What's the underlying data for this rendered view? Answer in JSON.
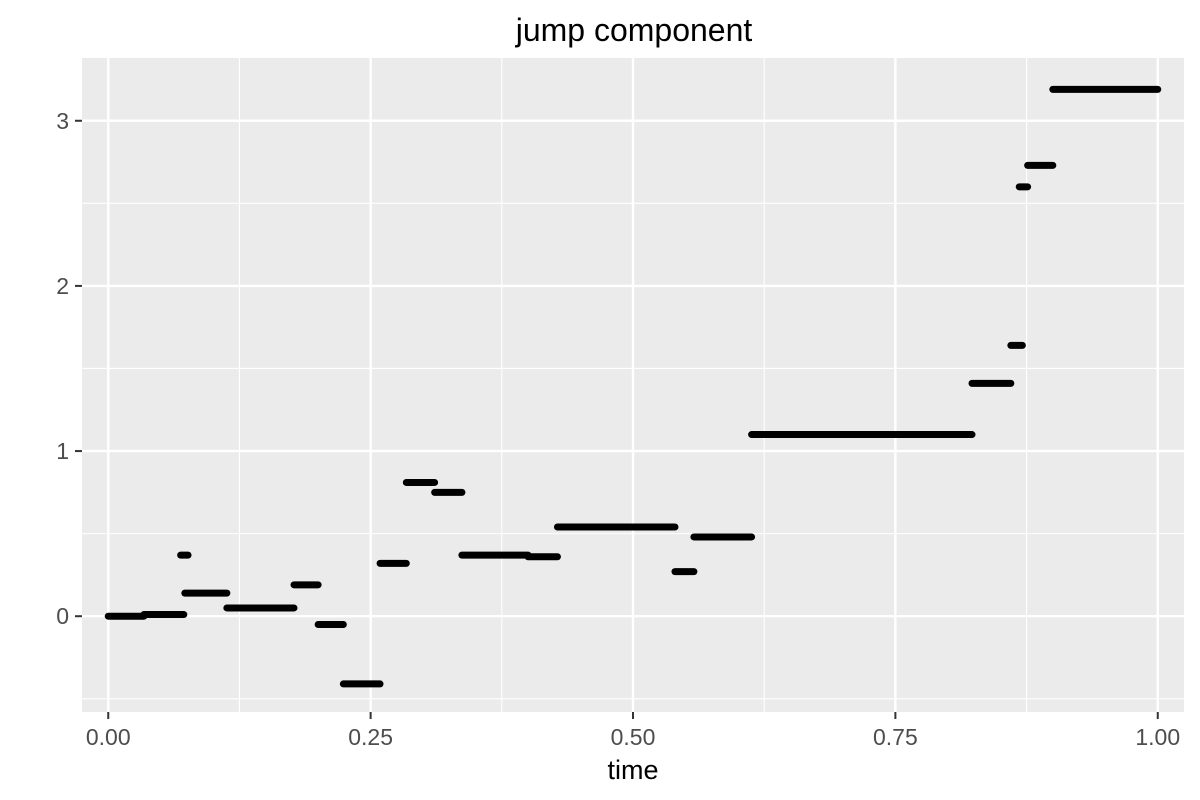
{
  "chart_data": {
    "type": "line",
    "title": "jump component",
    "xlabel": "time",
    "ylabel": "",
    "xlim": [
      -0.025,
      1.025
    ],
    "ylim": [
      -0.58,
      3.38
    ],
    "x_ticks": [
      0.0,
      0.25,
      0.5,
      0.75,
      1.0
    ],
    "x_tick_labels": [
      "0.00",
      "0.25",
      "0.50",
      "0.75",
      "1.00"
    ],
    "y_ticks": [
      0,
      1,
      2,
      3
    ],
    "y_tick_labels": [
      "0",
      "1",
      "2",
      "3"
    ],
    "grid": true,
    "legend": "none",
    "colors": {
      "panel": "#ebebeb",
      "grid": "#ffffff",
      "series": "#000000",
      "tick_text": "#4d4d4d",
      "tick_mark": "#333333"
    },
    "series": [
      {
        "segments": [
          {
            "x0": 0.0,
            "x1": 0.034,
            "y": 0.0
          },
          {
            "x0": 0.034,
            "x1": 0.072,
            "y": 0.01
          },
          {
            "x0": 0.069,
            "x1": 0.076,
            "y": 0.37
          },
          {
            "x0": 0.073,
            "x1": 0.113,
            "y": 0.14
          },
          {
            "x0": 0.113,
            "x1": 0.177,
            "y": 0.05
          },
          {
            "x0": 0.177,
            "x1": 0.2,
            "y": 0.19
          },
          {
            "x0": 0.2,
            "x1": 0.224,
            "y": -0.05
          },
          {
            "x0": 0.224,
            "x1": 0.259,
            "y": -0.41
          },
          {
            "x0": 0.259,
            "x1": 0.284,
            "y": 0.32
          },
          {
            "x0": 0.284,
            "x1": 0.311,
            "y": 0.81
          },
          {
            "x0": 0.311,
            "x1": 0.337,
            "y": 0.75
          },
          {
            "x0": 0.337,
            "x1": 0.4,
            "y": 0.37
          },
          {
            "x0": 0.4,
            "x1": 0.428,
            "y": 0.36
          },
          {
            "x0": 0.428,
            "x1": 0.54,
            "y": 0.54
          },
          {
            "x0": 0.54,
            "x1": 0.558,
            "y": 0.27
          },
          {
            "x0": 0.558,
            "x1": 0.613,
            "y": 0.48
          },
          {
            "x0": 0.613,
            "x1": 0.823,
            "y": 1.1
          },
          {
            "x0": 0.823,
            "x1": 0.86,
            "y": 1.41
          },
          {
            "x0": 0.86,
            "x1": 0.871,
            "y": 1.64
          },
          {
            "x0": 0.868,
            "x1": 0.876,
            "y": 2.6
          },
          {
            "x0": 0.876,
            "x1": 0.9,
            "y": 2.73
          },
          {
            "x0": 0.9,
            "x1": 1.0,
            "y": 3.19
          }
        ]
      }
    ]
  }
}
